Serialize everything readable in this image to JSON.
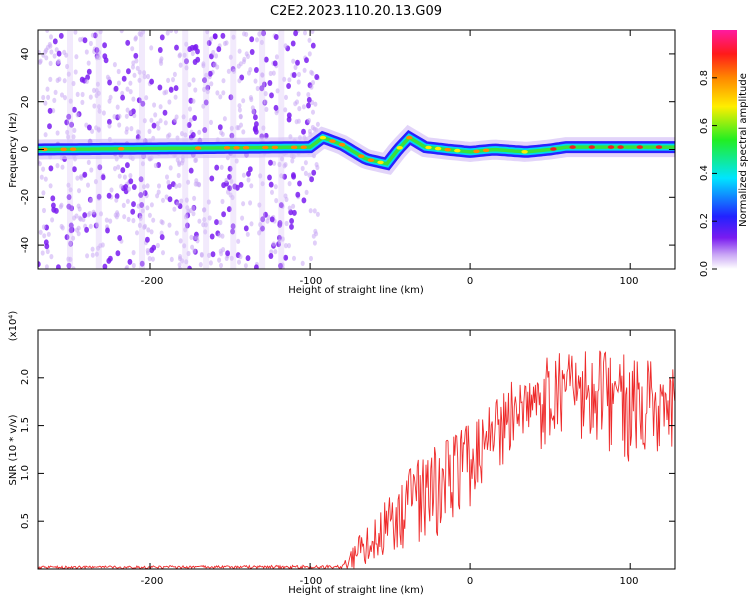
{
  "title": "C2E2.2023.110.20.13.G09",
  "colors": {
    "signal": "#ee2a2a",
    "noise": "#7a1cf0"
  },
  "chart_data": [
    {
      "type": "heatmap",
      "xlabel": "Height of straight line (km)",
      "ylabel": "Frequency (Hz)",
      "xlim": [
        -270,
        128
      ],
      "ylim": [
        -50,
        50
      ],
      "x_ticks": [
        "-200",
        "-100",
        "0",
        "100"
      ],
      "y_ticks": [
        "-40",
        "-20",
        "0",
        "20",
        "40"
      ],
      "colorbar": {
        "label": "Normalized spectral amplitude",
        "range": [
          0.0,
          1.0
        ],
        "ticks": [
          "0.0",
          "0.2",
          "0.4",
          "0.6",
          "0.8"
        ],
        "colormap": "rainbow (white-violet-blue-cyan-green-yellow-red-magenta)"
      },
      "ridge": [
        {
          "x": -270,
          "freq": 0
        },
        {
          "x": -100,
          "freq": 1
        },
        {
          "x": -92,
          "freq": 5
        },
        {
          "x": -80,
          "freq": 2
        },
        {
          "x": -65,
          "freq": -4
        },
        {
          "x": -52,
          "freq": -6
        },
        {
          "x": -45,
          "freq": 0
        },
        {
          "x": -38,
          "freq": 5
        },
        {
          "x": -28,
          "freq": 1
        },
        {
          "x": -15,
          "freq": 0
        },
        {
          "x": 0,
          "freq": -1
        },
        {
          "x": 15,
          "freq": 0
        },
        {
          "x": 35,
          "freq": -1
        },
        {
          "x": 50,
          "freq": 0
        },
        {
          "x": 60,
          "freq": 1
        },
        {
          "x": 128,
          "freq": 1
        }
      ],
      "noise_region_x": [
        -270,
        -95
      ],
      "grid": false,
      "legend": "colorbar right"
    },
    {
      "type": "line",
      "xlabel": "Height of straight line (km)",
      "ylabel": "SNR (10 * v/v)",
      "y_multiplier": "(x10⁴)",
      "xlim": [
        -270,
        128
      ],
      "ylim": [
        0,
        2.5
      ],
      "x_ticks": [
        "-200",
        "-100",
        "0",
        "100"
      ],
      "y_ticks": [
        "0.5",
        "1.0",
        "1.5",
        "2.0"
      ],
      "envelope": [
        {
          "x": -270,
          "low": 0.0,
          "high": 0.03
        },
        {
          "x": -80,
          "low": 0.0,
          "high": 0.04
        },
        {
          "x": -70,
          "low": 0.0,
          "high": 0.35
        },
        {
          "x": -60,
          "low": 0.02,
          "high": 0.5
        },
        {
          "x": -50,
          "low": 0.05,
          "high": 0.85
        },
        {
          "x": -40,
          "low": 0.1,
          "high": 1.1
        },
        {
          "x": -30,
          "low": 0.2,
          "high": 1.2
        },
        {
          "x": -20,
          "low": 0.3,
          "high": 1.3
        },
        {
          "x": -10,
          "low": 0.45,
          "high": 1.45
        },
        {
          "x": 0,
          "low": 0.6,
          "high": 1.55
        },
        {
          "x": 10,
          "low": 0.9,
          "high": 1.7
        },
        {
          "x": 20,
          "low": 1.0,
          "high": 1.85
        },
        {
          "x": 30,
          "low": 1.15,
          "high": 2.05
        },
        {
          "x": 50,
          "low": 1.2,
          "high": 2.25
        },
        {
          "x": 80,
          "low": 1.1,
          "high": 2.3
        },
        {
          "x": 100,
          "low": 1.1,
          "high": 2.35
        },
        {
          "x": 128,
          "low": 1.2,
          "high": 2.1
        }
      ],
      "series_color": "#ee2a2a",
      "grid": false
    }
  ]
}
